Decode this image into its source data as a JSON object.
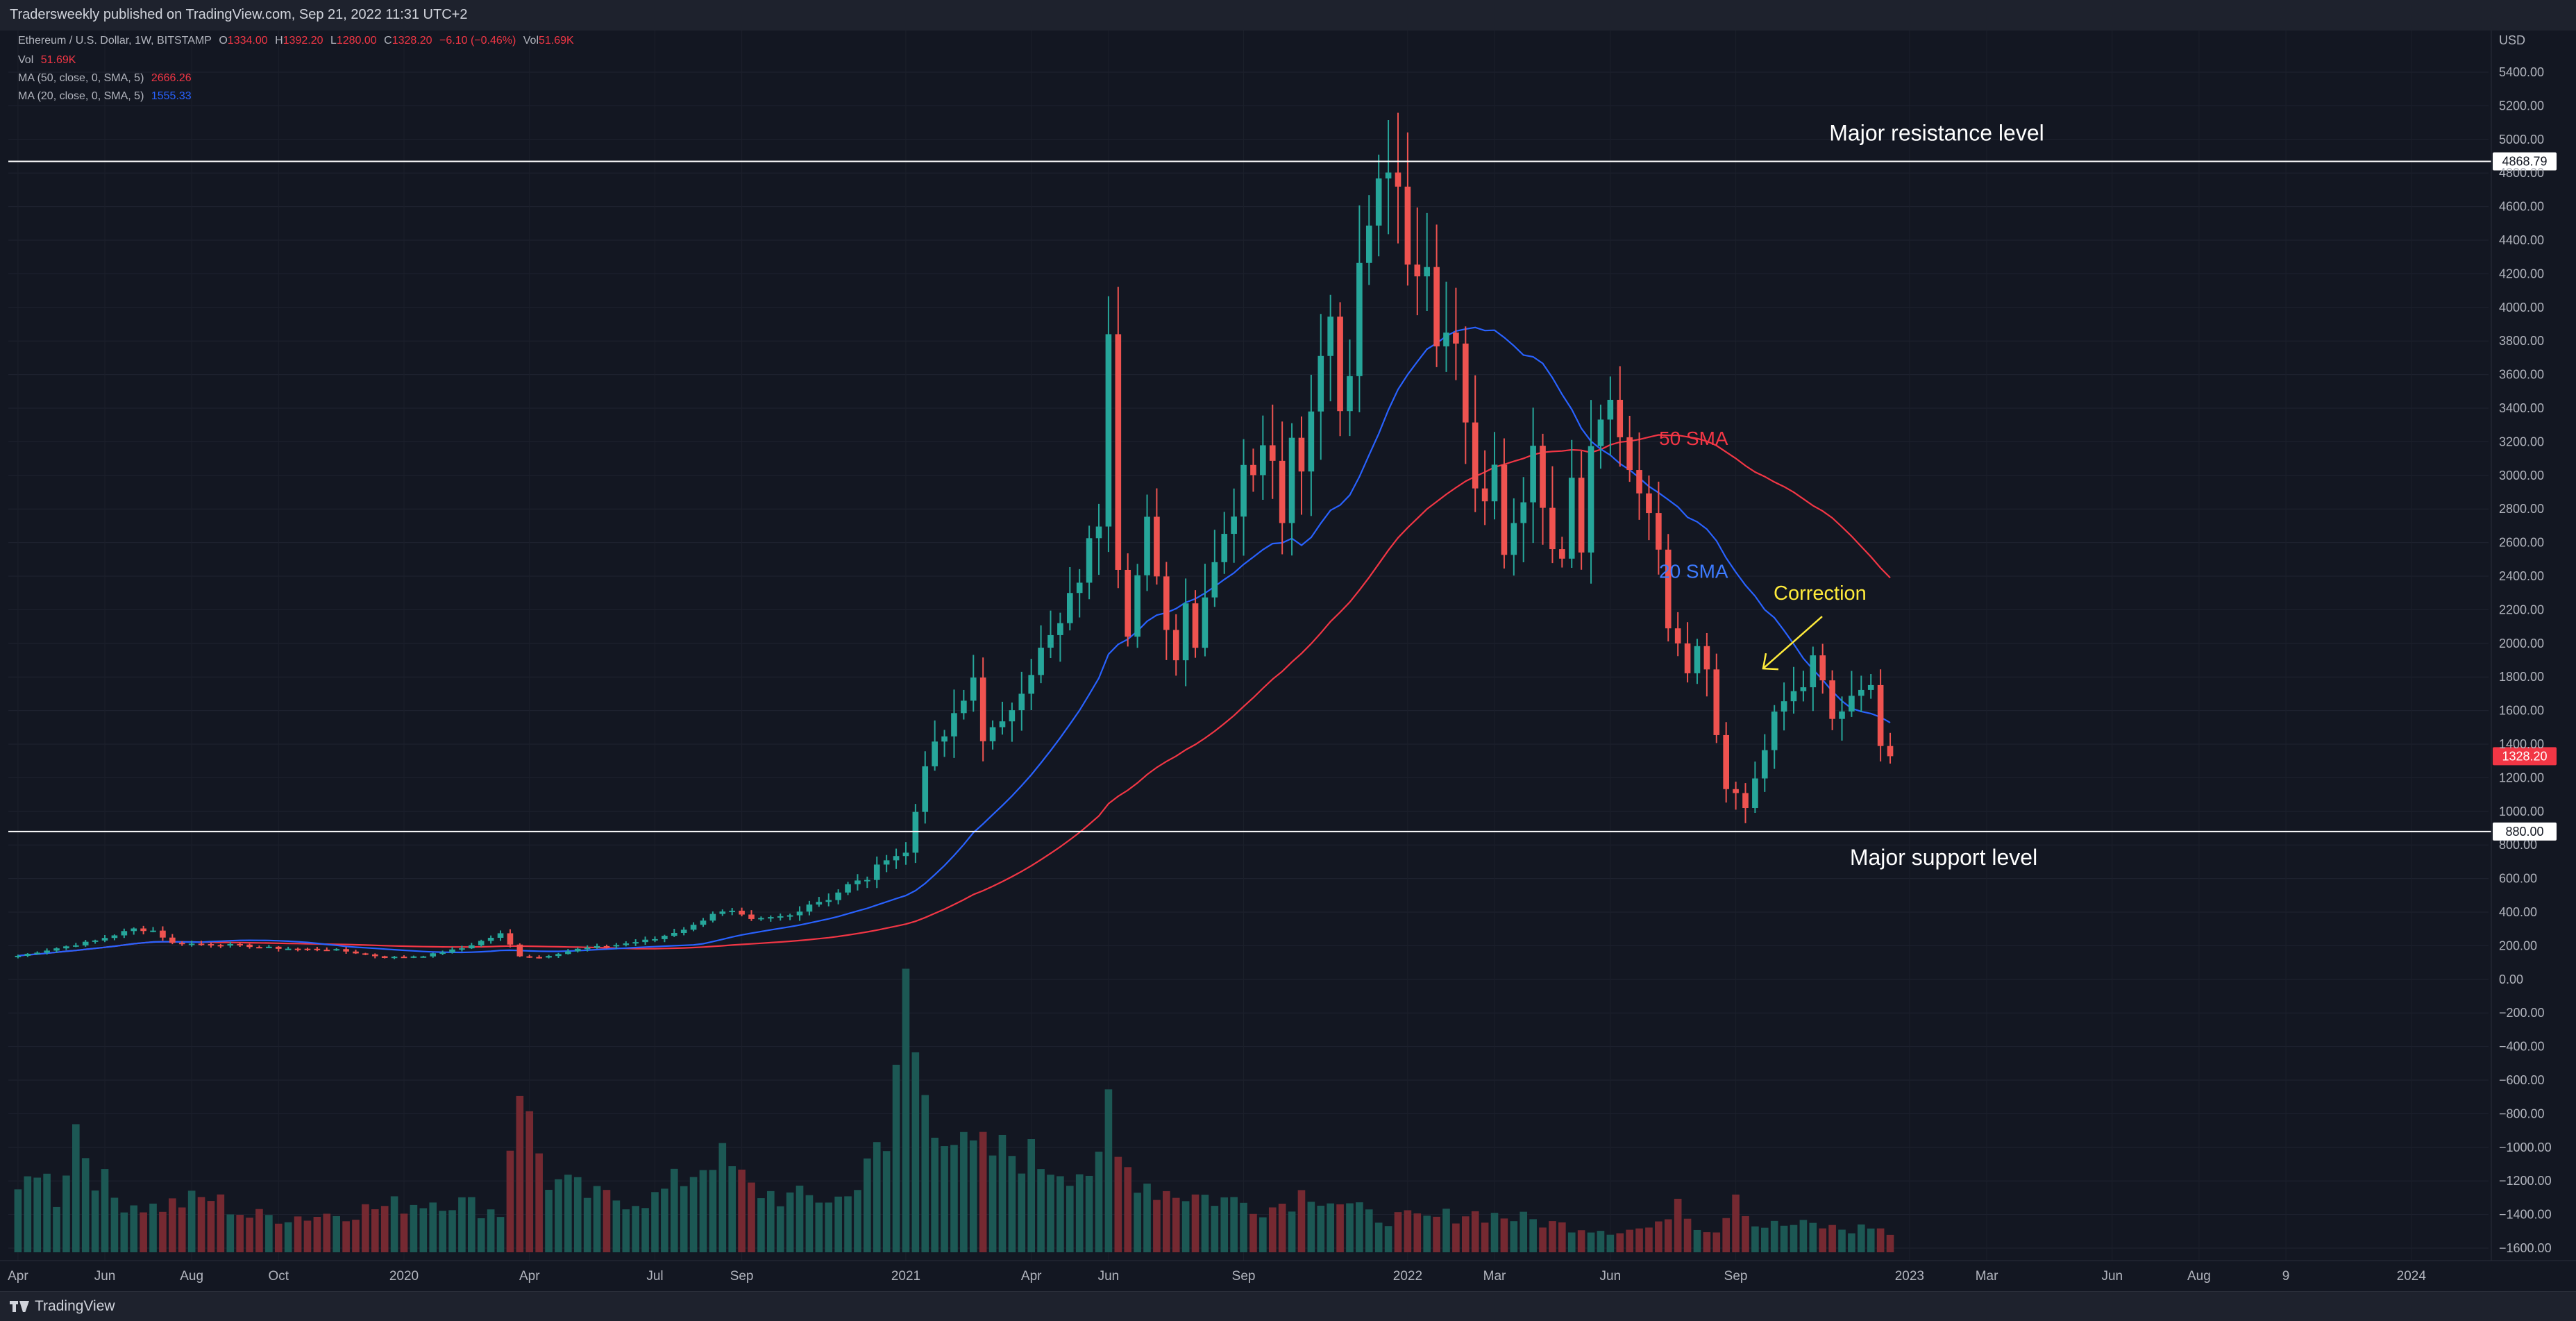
{
  "header": {
    "published_line": "Tradersweekly published on TradingView.com, Sep 21, 2022 11:31 UTC+2"
  },
  "legend": {
    "symbol": {
      "name": "Ethereum / U.S. Dollar, 1W, BITSTAMP",
      "o_label": "O",
      "o_value": "1334.00",
      "h_label": "H",
      "h_value": "1392.20",
      "l_label": "L",
      "l_value": "1280.00",
      "c_label": "C",
      "c_value": "1328.20",
      "change": "−6.10 (−0.46%)",
      "vol_label": "Vol",
      "vol_value": "51.69K"
    },
    "volume": {
      "label": "Vol",
      "value": "51.69K"
    },
    "ma50": {
      "label": "MA (50, close, 0, SMA, 5)",
      "value": "2666.26"
    },
    "ma20": {
      "label": "MA (20, close, 0, SMA, 5)",
      "value": "1555.33"
    }
  },
  "colors": {
    "background": "#131722",
    "up": "#26a69a",
    "down": "#ef5350",
    "ma50": "#f23645",
    "ma20": "#2962ff",
    "annotation_yellow": "#ffeb3b",
    "horizontal_line": "#ffffff",
    "price_tag": "#f23645"
  },
  "footer": {
    "brand": "TradingView",
    "logo_icon": "tradingview-logo-icon"
  },
  "chart_data": {
    "type": "candlestick",
    "symbol": "Ethereum / U.S. Dollar",
    "interval": "1W",
    "exchange": "BITSTAMP",
    "currency_label": "USD",
    "y_axis_ticks": [
      "5400.00",
      "5200.00",
      "5000.00",
      "4800.00",
      "4600.00",
      "4400.00",
      "4200.00",
      "4000.00",
      "3800.00",
      "3600.00",
      "3400.00",
      "3200.00",
      "3000.00",
      "2800.00",
      "2600.00",
      "2400.00",
      "2200.00",
      "2000.00",
      "1800.00",
      "1600.00",
      "1400.00",
      "1200.00",
      "1000.00",
      "800.00",
      "600.00",
      "400.00",
      "200.00",
      "0.00",
      "−200.00",
      "−400.00",
      "−600.00",
      "−800.00",
      "−1000.00",
      "−1200.00",
      "−1400.00",
      "−1600.00"
    ],
    "ylim": [
      -1600,
      5400
    ],
    "x_axis_ticks": [
      {
        "label": "Apr",
        "week": 0
      },
      {
        "label": "Jun",
        "week": 9
      },
      {
        "label": "Aug",
        "week": 18
      },
      {
        "label": "Oct",
        "week": 27
      },
      {
        "label": "2020",
        "week": 40
      },
      {
        "label": "Apr",
        "week": 53
      },
      {
        "label": "Jul",
        "week": 66
      },
      {
        "label": "Sep",
        "week": 75
      },
      {
        "label": "2021",
        "week": 92
      },
      {
        "label": "Apr",
        "week": 105
      },
      {
        "label": "Jun",
        "week": 113
      },
      {
        "label": "Sep",
        "week": 127
      },
      {
        "label": "2022",
        "week": 144
      },
      {
        "label": "Mar",
        "week": 153
      },
      {
        "label": "Jun",
        "week": 165
      },
      {
        "label": "Sep",
        "week": 178
      },
      {
        "label": "2023",
        "week": 196
      },
      {
        "label": "Mar",
        "week": 204
      },
      {
        "label": "Jun",
        "week": 217
      },
      {
        "label": "Aug",
        "week": 226
      },
      {
        "label": "9",
        "week": 235
      },
      {
        "label": "2024",
        "week": 248
      }
    ],
    "x_range_weeks": [
      -1,
      256
    ],
    "price_keypoints": [
      [
        0,
        140
      ],
      [
        8,
        230
      ],
      [
        12,
        300
      ],
      [
        14,
        290
      ],
      [
        16,
        215
      ],
      [
        22,
        205
      ],
      [
        27,
        185
      ],
      [
        33,
        175
      ],
      [
        38,
        130
      ],
      [
        42,
        140
      ],
      [
        46,
        185
      ],
      [
        50,
        270
      ],
      [
        52,
        140
      ],
      [
        54,
        130
      ],
      [
        58,
        180
      ],
      [
        62,
        205
      ],
      [
        66,
        240
      ],
      [
        70,
        320
      ],
      [
        72,
        395
      ],
      [
        74,
        400
      ],
      [
        76,
        350
      ],
      [
        80,
        380
      ],
      [
        82,
        450
      ],
      [
        84,
        480
      ],
      [
        86,
        560
      ],
      [
        88,
        600
      ],
      [
        90,
        730
      ],
      [
        92,
        750
      ],
      [
        93,
        1000
      ],
      [
        94,
        1300
      ],
      [
        96,
        1450
      ],
      [
        98,
        1650
      ],
      [
        99,
        1800
      ],
      [
        100,
        1450
      ],
      [
        102,
        1500
      ],
      [
        104,
        1750
      ],
      [
        106,
        1950
      ],
      [
        108,
        2100
      ],
      [
        110,
        2400
      ],
      [
        112,
        2750
      ],
      [
        113,
        3950
      ],
      [
        114,
        2500
      ],
      [
        115,
        2100
      ],
      [
        116,
        2400
      ],
      [
        117,
        2700
      ],
      [
        118,
        2350
      ],
      [
        120,
        1900
      ],
      [
        121,
        2300
      ],
      [
        122,
        2000
      ],
      [
        124,
        2550
      ],
      [
        126,
        2800
      ],
      [
        127,
        3100
      ],
      [
        128,
        2950
      ],
      [
        129,
        3250
      ],
      [
        130,
        3150
      ],
      [
        131,
        2800
      ],
      [
        132,
        3200
      ],
      [
        133,
        3100
      ],
      [
        134,
        3400
      ],
      [
        135,
        3800
      ],
      [
        136,
        3950
      ],
      [
        137,
        3400
      ],
      [
        138,
        3700
      ],
      [
        139,
        4200
      ],
      [
        140,
        4500
      ],
      [
        141,
        4700
      ],
      [
        142,
        4850
      ],
      [
        143,
        4600
      ],
      [
        144,
        4200
      ],
      [
        145,
        4150
      ],
      [
        146,
        4300
      ],
      [
        147,
        3800
      ],
      [
        148,
        3950
      ],
      [
        149,
        3700
      ],
      [
        150,
        3400
      ],
      [
        151,
        3000
      ],
      [
        152,
        2900
      ],
      [
        153,
        3100
      ],
      [
        154,
        2600
      ],
      [
        155,
        2700
      ],
      [
        156,
        2850
      ],
      [
        157,
        3200
      ],
      [
        158,
        2800
      ],
      [
        159,
        2500
      ],
      [
        160,
        2500
      ],
      [
        161,
        3000
      ],
      [
        162,
        2600
      ],
      [
        163,
        3100
      ],
      [
        164,
        3300
      ],
      [
        165,
        3450
      ],
      [
        166,
        3150
      ],
      [
        167,
        3000
      ],
      [
        168,
        2900
      ],
      [
        169,
        2700
      ],
      [
        170,
        2500
      ],
      [
        171,
        2100
      ],
      [
        172,
        2000
      ],
      [
        173,
        1800
      ],
      [
        174,
        1950
      ],
      [
        175,
        1800
      ],
      [
        176,
        1450
      ],
      [
        177,
        1100
      ],
      [
        178,
        1100
      ],
      [
        179,
        1000
      ],
      [
        180,
        1200
      ],
      [
        181,
        1400
      ],
      [
        182,
        1550
      ],
      [
        183,
        1650
      ],
      [
        184,
        1700
      ],
      [
        185,
        1750
      ],
      [
        186,
        1900
      ],
      [
        187,
        1750
      ],
      [
        188,
        1550
      ],
      [
        189,
        1600
      ],
      [
        190,
        1650
      ],
      [
        191,
        1700
      ],
      [
        192,
        1800
      ],
      [
        193,
        1400
      ],
      [
        194,
        1328.2
      ]
    ],
    "volume_profile_keypoints": [
      [
        0,
        0.28
      ],
      [
        2,
        0.5
      ],
      [
        4,
        0.3
      ],
      [
        6,
        0.7
      ],
      [
        8,
        0.45
      ],
      [
        10,
        0.3
      ],
      [
        14,
        0.25
      ],
      [
        20,
        0.3
      ],
      [
        24,
        0.2
      ],
      [
        30,
        0.2
      ],
      [
        38,
        0.25
      ],
      [
        44,
        0.3
      ],
      [
        50,
        0.22
      ],
      [
        52,
        1.0
      ],
      [
        53,
        0.7
      ],
      [
        55,
        0.4
      ],
      [
        60,
        0.3
      ],
      [
        66,
        0.3
      ],
      [
        70,
        0.45
      ],
      [
        72,
        0.55
      ],
      [
        76,
        0.35
      ],
      [
        80,
        0.3
      ],
      [
        86,
        0.3
      ],
      [
        88,
        0.55
      ],
      [
        90,
        0.5
      ],
      [
        92,
        1.55
      ],
      [
        93,
        1.05
      ],
      [
        95,
        0.8
      ],
      [
        98,
        0.55
      ],
      [
        104,
        0.55
      ],
      [
        106,
        0.5
      ],
      [
        112,
        0.45
      ],
      [
        113,
        0.78
      ],
      [
        114,
        0.5
      ],
      [
        118,
        0.35
      ],
      [
        124,
        0.3
      ],
      [
        130,
        0.25
      ],
      [
        134,
        0.35
      ],
      [
        140,
        0.2
      ],
      [
        146,
        0.18
      ],
      [
        150,
        0.22
      ],
      [
        154,
        0.2
      ],
      [
        160,
        0.15
      ],
      [
        166,
        0.12
      ],
      [
        170,
        0.14
      ],
      [
        172,
        0.32
      ],
      [
        174,
        0.15
      ],
      [
        176,
        0.12
      ],
      [
        178,
        0.35
      ],
      [
        180,
        0.15
      ],
      [
        186,
        0.15
      ],
      [
        190,
        0.12
      ],
      [
        192,
        0.15
      ],
      [
        194,
        0.1
      ]
    ],
    "volume_scale_note": "",
    "moving_averages": [
      {
        "name": "50 SMA",
        "period": 50,
        "color": "#f23645"
      },
      {
        "name": "20 SMA",
        "period": 20,
        "color": "#2962ff"
      }
    ],
    "horizontal_levels": [
      {
        "price": 4868.79,
        "tag": "4868.79",
        "label": "Major resistance level"
      },
      {
        "price": 880,
        "tag": "880.00",
        "label": "Major support level"
      }
    ],
    "current_price": {
      "price": 1328.2,
      "tag": "1328.20"
    },
    "annotations": {
      "sma50_label": "50 SMA",
      "sma20_label": "20 SMA",
      "correction_label": "Correction"
    }
  }
}
